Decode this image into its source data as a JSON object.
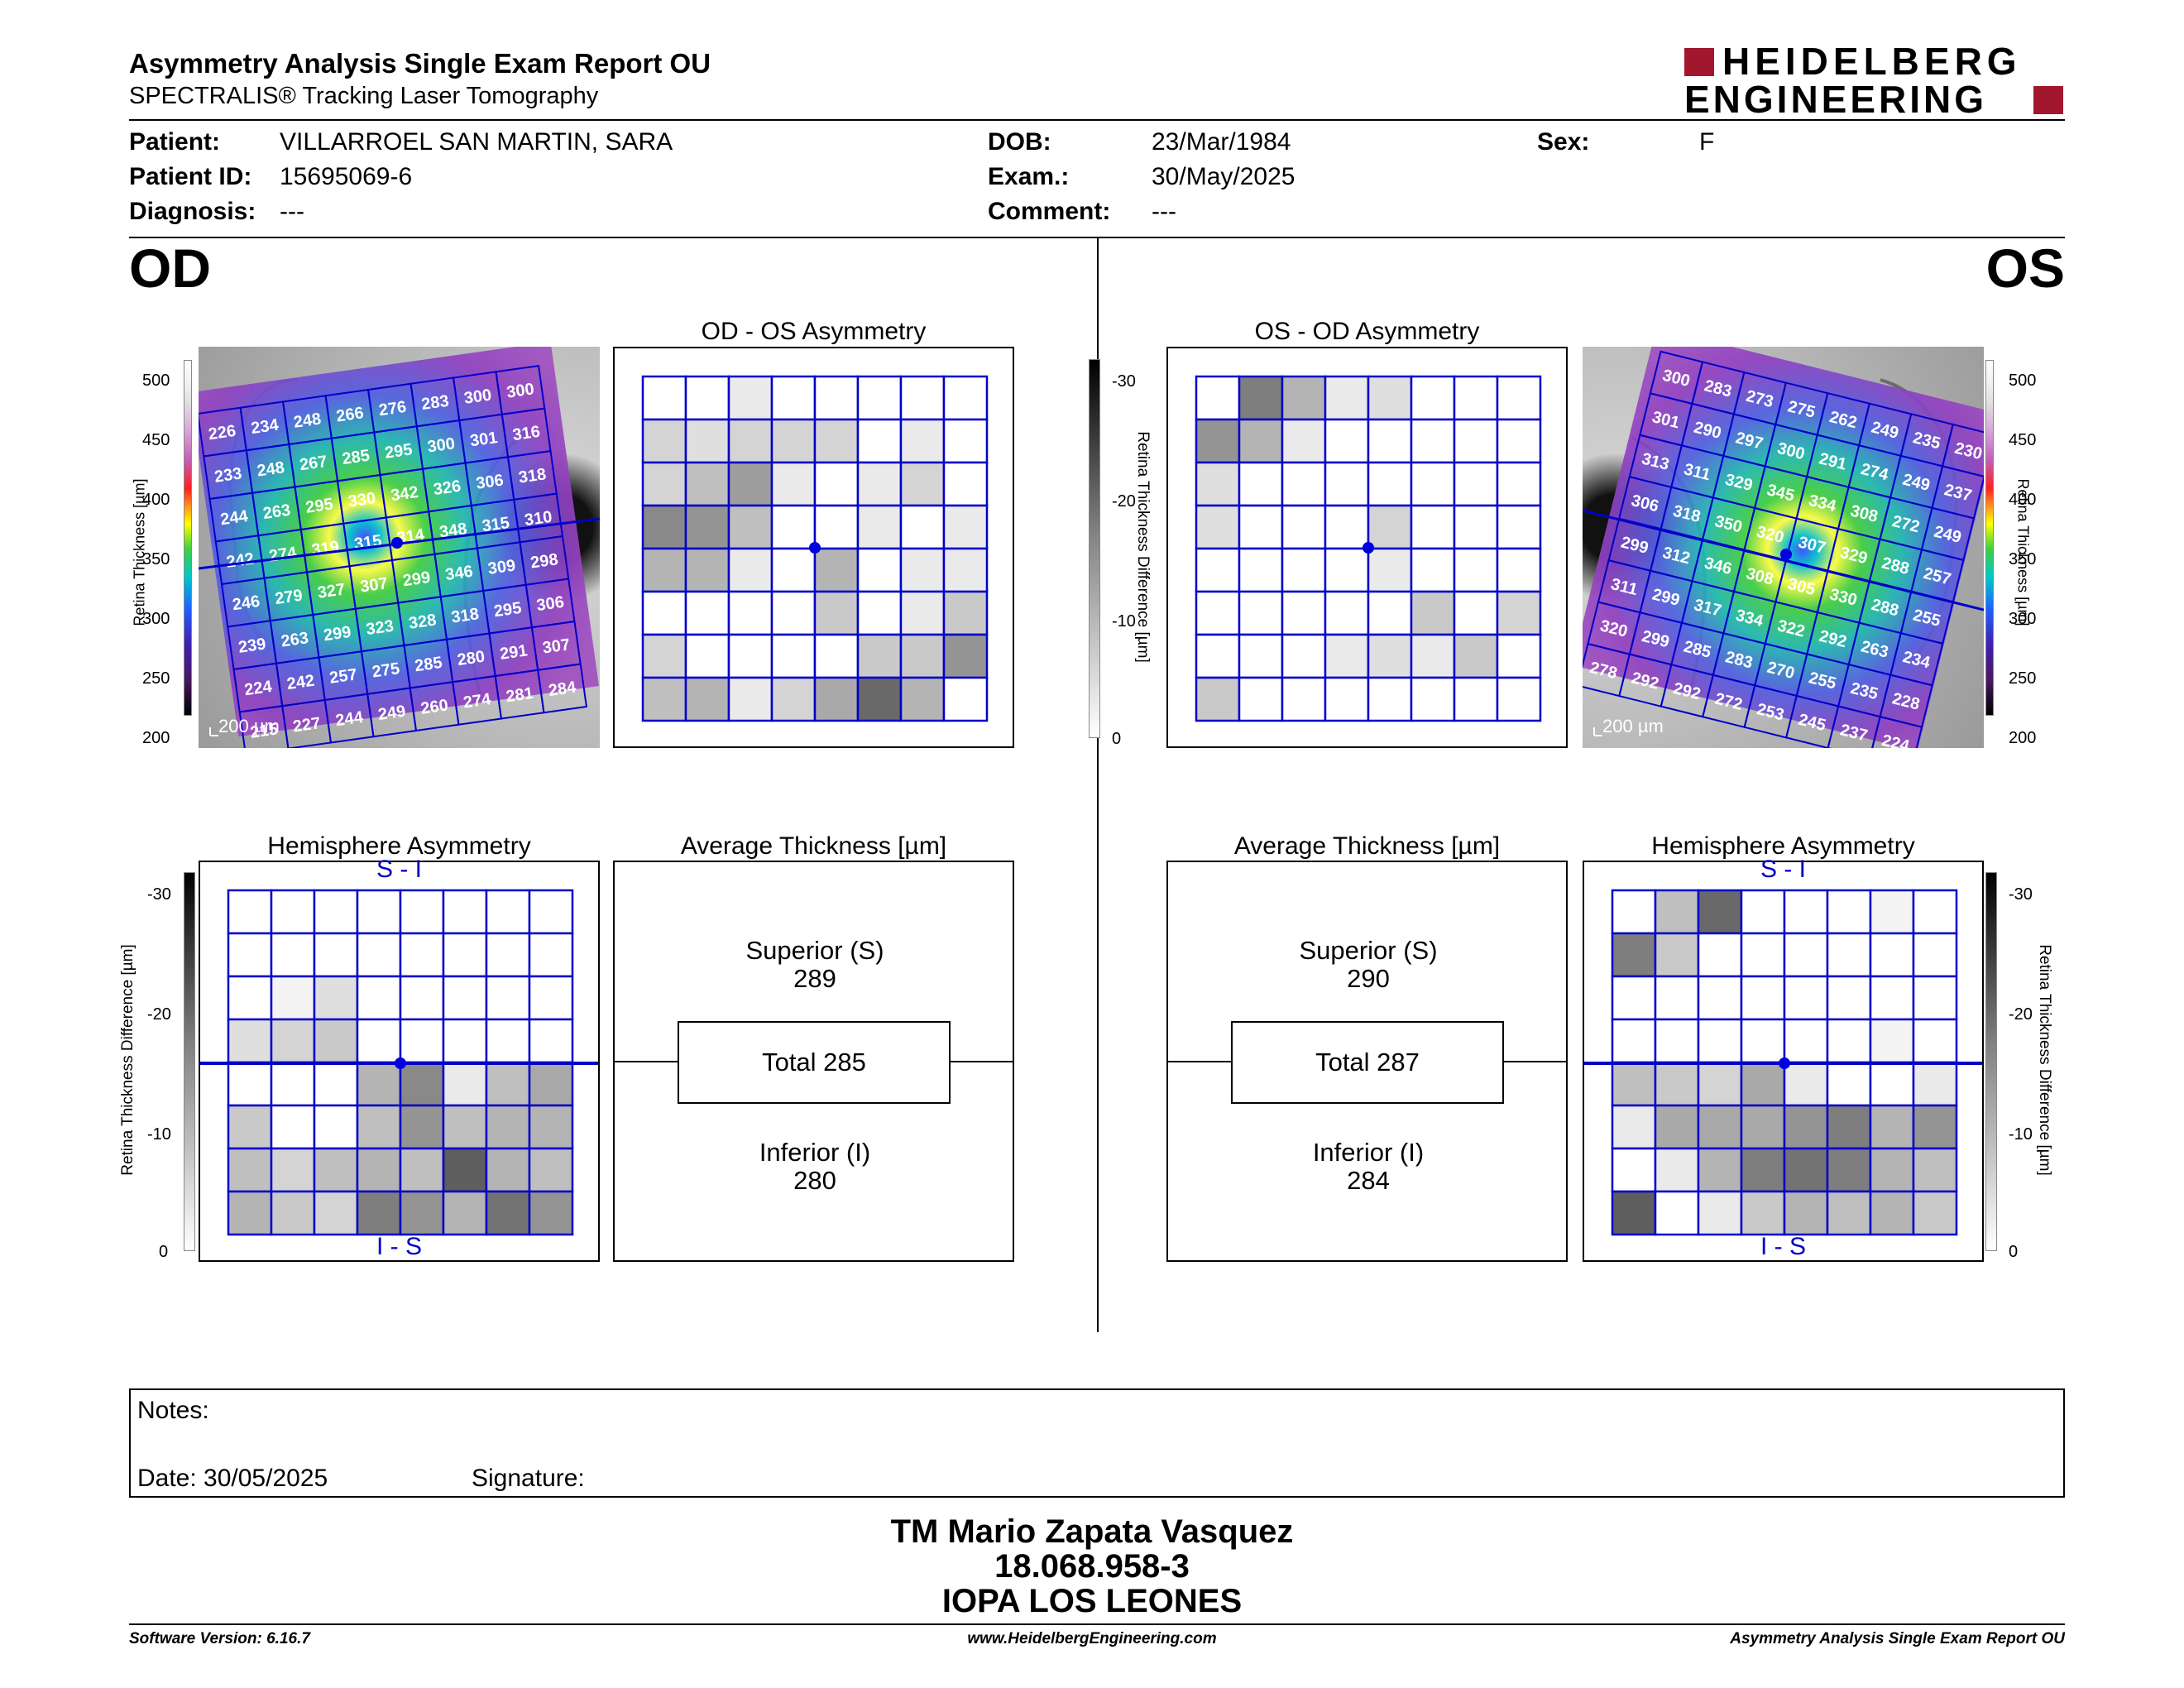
{
  "header": {
    "title": "Asymmetry Analysis Single Exam Report OU",
    "subtitle": "SPECTRALIS® Tracking Laser Tomography",
    "logo_line1": "HEIDELBERG",
    "logo_line2": "ENGINEERING",
    "brand_color": "#a3172e"
  },
  "patient": {
    "patient_label": "Patient:",
    "patient_value": "VILLARROEL SAN MARTIN, SARA",
    "id_label": "Patient ID:",
    "id_value": "15695069-6",
    "diag_label": "Diagnosis:",
    "diag_value": "---",
    "dob_label": "DOB:",
    "dob_value": "23/Mar/1984",
    "exam_label": "Exam.:",
    "exam_value": "30/May/2025",
    "comment_label": "Comment:",
    "comment_value": "---",
    "sex_label": "Sex:",
    "sex_value": "F"
  },
  "eyes": {
    "od": "OD",
    "os": "OS"
  },
  "thickness_scale": {
    "label": "Retina Thickness [µm]",
    "ticks": [
      "500",
      "450",
      "400",
      "350",
      "300",
      "250",
      "200"
    ]
  },
  "diff_scale": {
    "label": "Retina Thickness Difference [µm]",
    "ticks": [
      "-30",
      "-20",
      "-10",
      "0"
    ]
  },
  "scale_bar": "200 µm",
  "od": {
    "asym_title": "OD - OS Asymmetry",
    "hemi_title": "Hemisphere Asymmetry",
    "hemi_top": "S - I",
    "hemi_bottom": "I - S",
    "avg_title": "Average Thickness [µm]",
    "superior_label": "Superior (S)",
    "superior_value": "289",
    "total": "Total 285",
    "inferior_label": "Inferior (I)",
    "inferior_value": "280",
    "grid": [
      [
        "226",
        "234",
        "248",
        "266",
        "276",
        "283",
        "300",
        "300"
      ],
      [
        "233",
        "248",
        "267",
        "285",
        "295",
        "300",
        "301",
        "316"
      ],
      [
        "244",
        "263",
        "295",
        "330",
        "342",
        "326",
        "306",
        "318"
      ],
      [
        "242",
        "274",
        "319",
        "315",
        "314",
        "348",
        "315",
        "310"
      ],
      [
        "246",
        "279",
        "327",
        "307",
        "299",
        "346",
        "309",
        "298"
      ],
      [
        "239",
        "263",
        "299",
        "323",
        "328",
        "318",
        "295",
        "306"
      ],
      [
        "224",
        "242",
        "257",
        "275",
        "285",
        "280",
        "291",
        "307"
      ],
      [
        "215",
        "227",
        "244",
        "249",
        "260",
        "274",
        "281",
        "284"
      ]
    ],
    "asym_cells": [
      [
        0,
        0,
        0.1,
        0,
        0,
        0,
        0,
        0
      ],
      [
        0.2,
        0.15,
        0.2,
        0.2,
        0.2,
        0,
        0.1,
        0
      ],
      [
        0.2,
        0.3,
        0.45,
        0.1,
        0,
        0.1,
        0.2,
        0
      ],
      [
        0.55,
        0.5,
        0.3,
        0,
        0,
        0.1,
        0,
        0.1
      ],
      [
        0.35,
        0.35,
        0.1,
        0,
        0.35,
        0,
        0.1,
        0.1
      ],
      [
        0,
        0,
        0,
        0,
        0.25,
        0,
        0.1,
        0.25
      ],
      [
        0.2,
        0,
        0,
        0,
        0,
        0.25,
        0.25,
        0.5
      ],
      [
        0.3,
        0.35,
        0.1,
        0.2,
        0.4,
        0.7,
        0.35,
        0
      ]
    ],
    "hemi_cells": [
      [
        0,
        0,
        0,
        0,
        0,
        0,
        0,
        0
      ],
      [
        0,
        0,
        0,
        0,
        0,
        0,
        0,
        0
      ],
      [
        0,
        0.05,
        0.15,
        0,
        0,
        0,
        0,
        0
      ],
      [
        0.15,
        0.2,
        0.25,
        0,
        0,
        0,
        0,
        0
      ],
      [
        0,
        0,
        0,
        0.35,
        0.55,
        0.1,
        0.3,
        0.4
      ],
      [
        0.25,
        0,
        0,
        0.3,
        0.5,
        0.3,
        0.35,
        0.35
      ],
      [
        0.3,
        0.2,
        0.3,
        0.35,
        0.3,
        0.75,
        0.35,
        0.3
      ],
      [
        0.35,
        0.25,
        0.2,
        0.6,
        0.5,
        0.35,
        0.65,
        0.5
      ]
    ]
  },
  "os": {
    "asym_title": "OS - OD Asymmetry",
    "hemi_title": "Hemisphere Asymmetry",
    "hemi_top": "S - I",
    "hemi_bottom": "I - S",
    "avg_title": "Average Thickness [µm]",
    "superior_label": "Superior (S)",
    "superior_value": "290",
    "total": "Total 287",
    "inferior_label": "Inferior (I)",
    "inferior_value": "284",
    "grid": [
      [
        "300",
        "283",
        "273",
        "275",
        "262",
        "249",
        "235",
        "230"
      ],
      [
        "301",
        "290",
        "297",
        "300",
        "291",
        "274",
        "249",
        "237"
      ],
      [
        "313",
        "311",
        "329",
        "345",
        "334",
        "308",
        "272",
        "249"
      ],
      [
        "306",
        "318",
        "350",
        "320",
        "307",
        "329",
        "288",
        "257"
      ],
      [
        "299",
        "312",
        "346",
        "308",
        "305",
        "330",
        "288",
        "255"
      ],
      [
        "311",
        "299",
        "317",
        "334",
        "322",
        "292",
        "263",
        "234"
      ],
      [
        "320",
        "299",
        "285",
        "283",
        "270",
        "255",
        "235",
        "228"
      ],
      [
        "278",
        "292",
        "292",
        "272",
        "253",
        "245",
        "237",
        "224"
      ]
    ],
    "asym_cells": [
      [
        0,
        0.6,
        0.35,
        0.1,
        0.15,
        0,
        0,
        0
      ],
      [
        0.5,
        0.35,
        0.1,
        0,
        0,
        0,
        0,
        0
      ],
      [
        0.15,
        0,
        0,
        0,
        0,
        0,
        0,
        0
      ],
      [
        0.15,
        0,
        0,
        0,
        0.2,
        0,
        0,
        0
      ],
      [
        0,
        0,
        0,
        0,
        0.1,
        0,
        0,
        0
      ],
      [
        0,
        0,
        0,
        0,
        0,
        0.25,
        0,
        0.2
      ],
      [
        0,
        0,
        0,
        0.1,
        0.15,
        0.1,
        0.25,
        0
      ],
      [
        0.25,
        0,
        0,
        0,
        0,
        0,
        0,
        0
      ]
    ],
    "hemi_cells": [
      [
        0,
        0.3,
        0.7,
        0,
        0,
        0,
        0.05,
        0
      ],
      [
        0.6,
        0.25,
        0,
        0,
        0,
        0,
        0,
        0
      ],
      [
        0,
        0,
        0,
        0,
        0,
        0,
        0,
        0
      ],
      [
        0,
        0,
        0,
        0,
        0,
        0,
        0.05,
        0
      ],
      [
        0.3,
        0.25,
        0.2,
        0.4,
        0.1,
        0,
        0,
        0.1
      ],
      [
        0.1,
        0.4,
        0.4,
        0.4,
        0.5,
        0.6,
        0.35,
        0.5
      ],
      [
        0,
        0.1,
        0.35,
        0.6,
        0.65,
        0.6,
        0.35,
        0.3
      ],
      [
        0.75,
        0,
        0.1,
        0.25,
        0.35,
        0.3,
        0.35,
        0.25
      ]
    ]
  },
  "notes": {
    "label": "Notes:",
    "date": "Date: 30/05/2025",
    "signature": "Signature:"
  },
  "signer": {
    "name": "TM Mario Zapata Vasquez",
    "id": "18.068.958-3",
    "org": "IOPA LOS LEONES"
  },
  "footer": {
    "left": "Software Version: 6.16.7",
    "center": "www.HeidelbergEngineering.com",
    "right": "Asymmetry Analysis Single Exam Report OU"
  }
}
